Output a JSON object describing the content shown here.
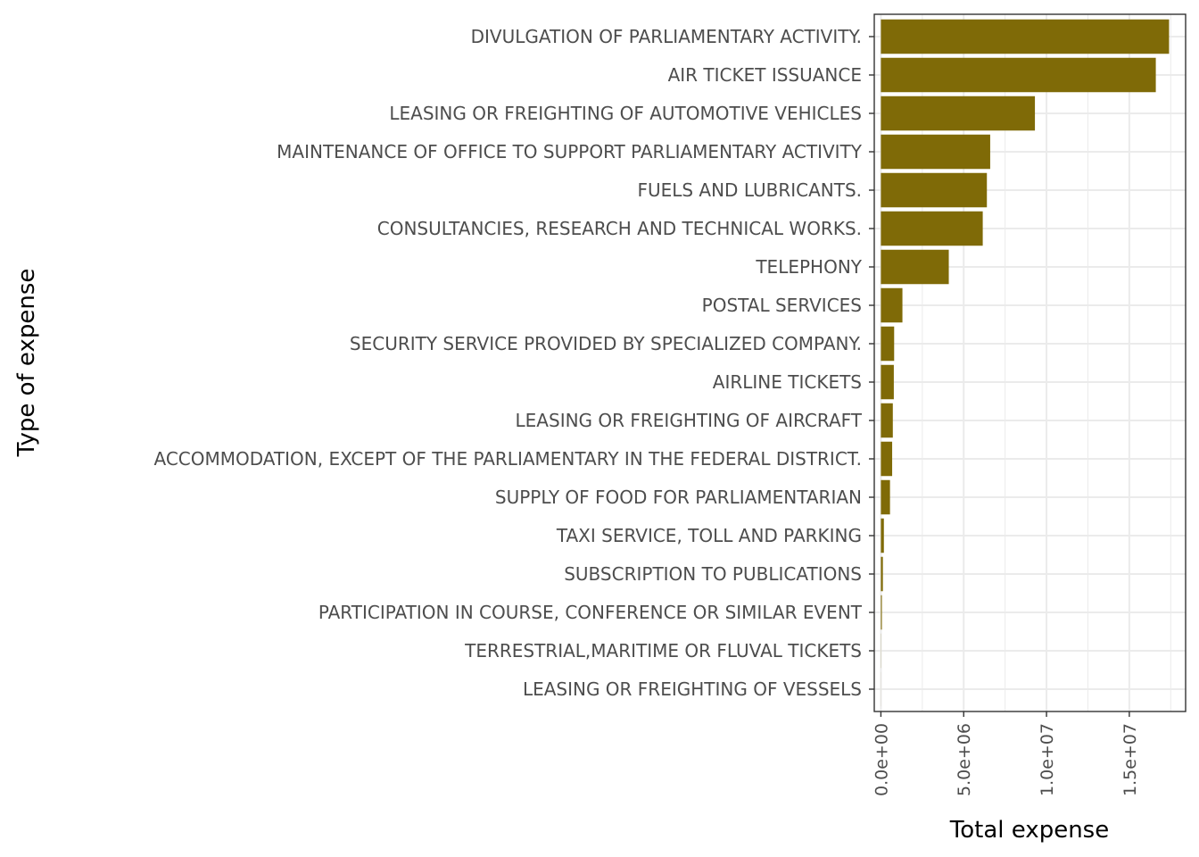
{
  "chart_data": {
    "type": "bar",
    "orientation": "horizontal",
    "title": "",
    "xlabel": "Total expense",
    "ylabel": "Type of expense",
    "categories": [
      "DIVULGATION OF PARLIAMENTARY ACTIVITY.",
      "AIR TICKET ISSUANCE",
      "LEASING OR FREIGHTING OF AUTOMOTIVE VEHICLES",
      "MAINTENANCE OF OFFICE TO SUPPORT PARLIAMENTARY ACTIVITY",
      "FUELS AND LUBRICANTS.",
      "CONSULTANCIES, RESEARCH AND TECHNICAL WORKS.",
      "TELEPHONY",
      "POSTAL SERVICES",
      "SECURITY SERVICE PROVIDED BY SPECIALIZED COMPANY.",
      "AIRLINE TICKETS",
      "LEASING OR FREIGHTING OF AIRCRAFT",
      "ACCOMMODATION, EXCEPT OF THE PARLIAMENTARY IN THE FEDERAL DISTRICT.",
      "SUPPLY OF FOOD FOR PARLIAMENTARIAN",
      "TAXI SERVICE, TOLL AND PARKING",
      "SUBSCRIPTION TO PUBLICATIONS",
      "PARTICIPATION IN COURSE, CONFERENCE OR SIMILAR EVENT",
      "TERRESTRIAL,MARITIME OR FLUVAL TICKETS",
      "LEASING OR FREIGHTING OF VESSELS"
    ],
    "values": [
      17400000,
      16600000,
      9300000,
      6600000,
      6400000,
      6150000,
      4100000,
      1300000,
      800000,
      780000,
      720000,
      680000,
      550000,
      180000,
      120000,
      60000,
      8000,
      3000
    ],
    "xlim": [
      -400000,
      18400000
    ],
    "xticks": [
      {
        "value": 0,
        "label": "0.0e+00"
      },
      {
        "value": 5000000,
        "label": "5.0e+06"
      },
      {
        "value": 10000000,
        "label": "1.0e+07"
      },
      {
        "value": 15000000,
        "label": "1.5e+07"
      }
    ],
    "bar_color": "#7f6a07",
    "grid": true,
    "legend": "none"
  }
}
